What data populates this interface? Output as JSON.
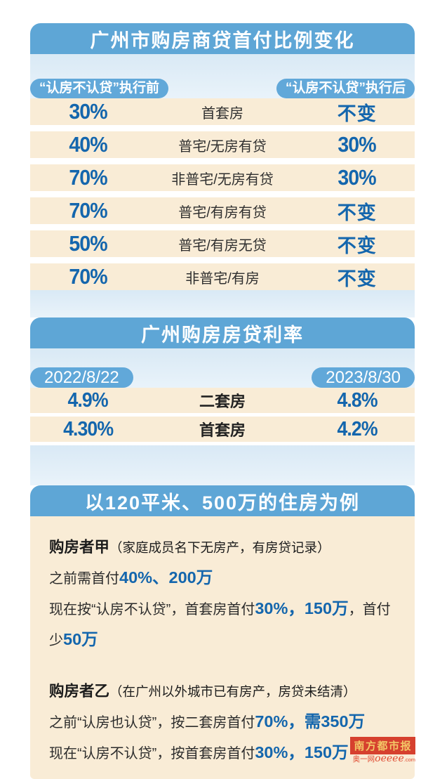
{
  "colors": {
    "header_blue": "#5ea6d6",
    "pill_blue": "#61a8d9",
    "row_beige": "#f9ecd6",
    "light_blue_bg": "#e2eef8",
    "accent_blue": "#1466ad",
    "body_text": "#2b2b2b",
    "logo_red": "#d6402e",
    "logo_gold": "#f3c767"
  },
  "section1": {
    "title": "广州市购房商贷首付比例变化",
    "chip_before": "“认房不认贷”执行前",
    "chip_after": "“认房不认贷”执行后",
    "rows": [
      {
        "before": "30%",
        "label": "首套房",
        "after": "不变",
        "after_kind": "unch"
      },
      {
        "before": "40%",
        "label": "普宅/无房有贷",
        "after": "30%",
        "after_kind": "pct"
      },
      {
        "before": "70%",
        "label": "非普宅/无房有贷",
        "after": "30%",
        "after_kind": "pct"
      },
      {
        "before": "70%",
        "label": "普宅/有房有贷",
        "after": "不变",
        "after_kind": "unch"
      },
      {
        "before": "50%",
        "label": "普宅/有房无贷",
        "after": "不变",
        "after_kind": "unch"
      },
      {
        "before": "70%",
        "label": "非普宅/有房",
        "after": "不变",
        "after_kind": "unch"
      }
    ]
  },
  "section2": {
    "title": "广州购房房贷利率",
    "date_before": "2022/8/22",
    "date_after": "2023/8/30",
    "rows": [
      {
        "before": "4.9%",
        "label": "二套房",
        "after": "4.8%"
      },
      {
        "before": "4.30%",
        "label": "首套房",
        "after": "4.2%"
      }
    ]
  },
  "section3": {
    "title": "以120平米、500万的住房为例",
    "buyer_a": {
      "lines": [
        [
          {
            "t": "购房者甲",
            "s": "name"
          },
          {
            "t": "（家庭成员名下无房产，有房贷记录）",
            "s": "note"
          }
        ],
        [
          {
            "t": "之前需首付",
            "s": "n"
          },
          {
            "t": "40%、200万",
            "s": "em"
          }
        ],
        [
          {
            "t": "现在按“认房不认贷”，首套房首付",
            "s": "n"
          },
          {
            "t": "30%，150万",
            "s": "em"
          },
          {
            "t": "，首付",
            "s": "n"
          }
        ],
        [
          {
            "t": "少",
            "s": "n"
          },
          {
            "t": "50万",
            "s": "em"
          }
        ]
      ]
    },
    "buyer_b": {
      "lines": [
        [
          {
            "t": "购房者乙",
            "s": "name"
          },
          {
            "t": "（在广州以外城市已有房产，房贷未结清）",
            "s": "note"
          }
        ],
        [
          {
            "t": "之前“认房也认贷”，按二套房首付",
            "s": "n"
          },
          {
            "t": "70%，需350万",
            "s": "em"
          }
        ],
        [
          {
            "t": "现在“认房不认贷”，按首套房首付",
            "s": "n"
          },
          {
            "t": "30%，150万",
            "s": "em"
          }
        ]
      ]
    }
  },
  "brand": {
    "logo": "南方都市报",
    "tagline_prefix": "奥一网",
    "tagline_word": "oeeee",
    "tagline_domain": ".com"
  },
  "chart_data": [
    {
      "type": "table",
      "title": "广州市购房商贷首付比例变化",
      "columns": [
        "“认房不认贷”执行前",
        "",
        "“认房不认贷”执行后"
      ],
      "rows": [
        [
          "30%",
          "首套房",
          "不变"
        ],
        [
          "40%",
          "普宅/无房有贷",
          "30%"
        ],
        [
          "70%",
          "非普宅/无房有贷",
          "30%"
        ],
        [
          "70%",
          "普宅/有房有贷",
          "不变"
        ],
        [
          "50%",
          "普宅/有房无贷",
          "不变"
        ],
        [
          "70%",
          "非普宅/有房",
          "不变"
        ]
      ]
    },
    {
      "type": "table",
      "title": "广州购房房贷利率",
      "columns": [
        "2022/8/22",
        "",
        "2023/8/30"
      ],
      "rows": [
        [
          "4.9%",
          "二套房",
          "4.8%"
        ],
        [
          "4.30%",
          "首套房",
          "4.2%"
        ]
      ]
    }
  ]
}
